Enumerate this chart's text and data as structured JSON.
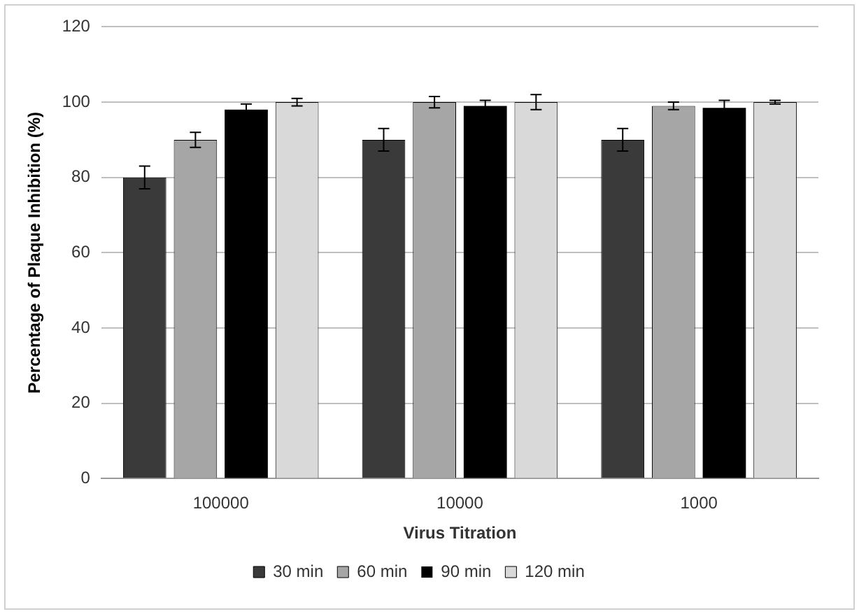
{
  "chart_data": {
    "type": "bar",
    "xlabel": "Virus Titration",
    "ylabel": "Percentage of Plaque Inhibition (%)",
    "categories": [
      "100000",
      "10000",
      "1000"
    ],
    "series": [
      {
        "name": "30 min",
        "color": "#3a3a3a",
        "values": [
          80,
          90,
          90
        ],
        "errors": [
          3,
          3,
          3
        ]
      },
      {
        "name": "60 min",
        "color": "#a6a6a6",
        "values": [
          90,
          100,
          99
        ],
        "errors": [
          2,
          1.5,
          1
        ]
      },
      {
        "name": "90 min",
        "color": "#000000",
        "values": [
          98,
          99,
          98.5
        ],
        "errors": [
          1.5,
          1.5,
          2
        ]
      },
      {
        "name": "120 min",
        "color": "#d9d9d9",
        "values": [
          100,
          100,
          100
        ],
        "errors": [
          1,
          2,
          0.5
        ]
      }
    ],
    "ylim": [
      0,
      120
    ],
    "yticks": [
      0,
      20,
      40,
      60,
      80,
      100,
      120
    ],
    "grid": "y",
    "legend": "bottom"
  }
}
